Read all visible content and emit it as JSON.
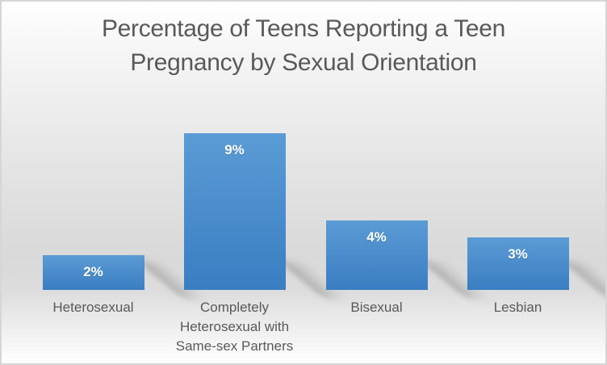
{
  "chart_data": {
    "type": "bar",
    "title": "Percentage of Teens Reporting a Teen\nPregnancy by Sexual Orientation",
    "categories": [
      "Heterosexual",
      "Completely Heterosexual with Same-sex Partners",
      "Bisexual",
      "Lesbian"
    ],
    "values": [
      2,
      9,
      4,
      3
    ],
    "data_labels": [
      "2%",
      "9%",
      "4%",
      "3%"
    ],
    "value_unit": "%",
    "xlabel": "",
    "ylabel": "",
    "ylim": [
      0,
      9.5
    ],
    "gridlines": false,
    "axes_visible": false,
    "legend_position": "none",
    "data_label_position": "inside-end",
    "colors": {
      "bar_gradient_top": "#5b9bd5",
      "bar_gradient_bottom": "#3a7ec2",
      "title_text": "#595959",
      "category_text": "#595959",
      "data_label_text": "#ffffff",
      "border": "#d6d6d6"
    }
  }
}
